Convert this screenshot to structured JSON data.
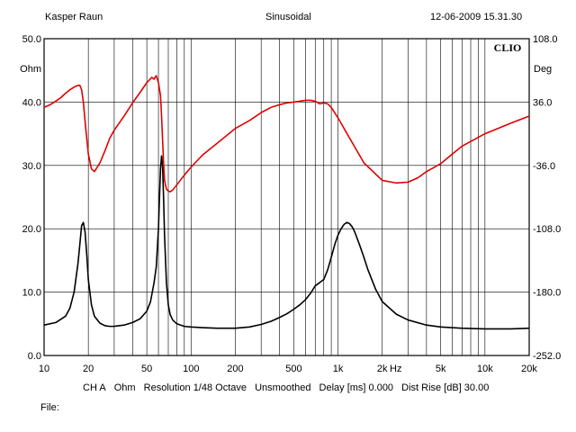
{
  "header": {
    "left": "Kasper Raun",
    "center": "Sinusoidal",
    "right": "12-06-2009 15.31.30"
  },
  "brand": "CLIO",
  "footer": {
    "channel": "CH A",
    "unit": "Ohm",
    "resolution": "Resolution 1/48 Octave",
    "smoothing": "Unsmoothed",
    "delay": "Delay [ms] 0.000",
    "dist_rise": "Dist Rise [dB] 30.00"
  },
  "file_label": "File:",
  "colors": {
    "impedance": "#000000",
    "phase": "#e00000",
    "grid": "#000000"
  },
  "chart_data": {
    "type": "line",
    "xscale": "log",
    "xlim": [
      10,
      20000
    ],
    "x_ticks": [
      10,
      20,
      50,
      100,
      200,
      500,
      1000,
      2000,
      5000,
      10000,
      20000
    ],
    "x_tick_labels": [
      "10",
      "20",
      "50",
      "100",
      "200",
      "500",
      "1k",
      "2k",
      "5k",
      "10k",
      "20k"
    ],
    "x_unit_label": "Hz",
    "y_left": {
      "unit": "Ohm",
      "lim": [
        0,
        50
      ],
      "ticks": [
        0,
        10,
        20,
        30,
        40,
        50
      ],
      "tick_labels": [
        "0.0",
        "10.0",
        "20.0",
        "30.0",
        "40.0",
        "50.0"
      ]
    },
    "y_right": {
      "unit": "Deg",
      "lim": [
        -252,
        108
      ],
      "ticks": [
        -252,
        -180,
        -108,
        -36,
        36,
        108
      ],
      "tick_labels": [
        "-252.0",
        "-180.0",
        "-108.0",
        "-36.0",
        "36.0",
        "108.0"
      ]
    },
    "grid": true,
    "series": [
      {
        "axis": "left",
        "color": "#000000",
        "x": [
          10,
          12,
          14,
          15,
          16,
          17,
          17.5,
          18,
          18.5,
          19,
          19.5,
          20,
          21,
          22,
          24,
          26,
          28,
          30,
          35,
          40,
          45,
          50,
          53,
          56,
          58,
          60,
          61,
          62,
          63,
          64,
          65,
          66,
          68,
          70,
          72,
          75,
          80,
          90,
          100,
          120,
          150,
          200,
          250,
          300,
          350,
          400,
          450,
          500,
          550,
          600,
          650,
          700,
          750,
          800,
          850,
          900,
          950,
          1000,
          1050,
          1100,
          1150,
          1200,
          1250,
          1300,
          1400,
          1500,
          1600,
          1800,
          2000,
          2500,
          3000,
          4000,
          5000,
          7000,
          10000,
          15000,
          20000
        ],
        "values": [
          4.8,
          5.2,
          6.2,
          7.5,
          10.0,
          14.5,
          17.5,
          20.5,
          21.0,
          19.5,
          16.0,
          12.0,
          8.0,
          6.2,
          5.1,
          4.7,
          4.6,
          4.6,
          4.8,
          5.2,
          5.8,
          7.0,
          8.5,
          11.5,
          14.0,
          20.0,
          25.0,
          29.5,
          31.5,
          30.0,
          25.0,
          19.0,
          11.5,
          8.0,
          6.5,
          5.6,
          5.0,
          4.6,
          4.5,
          4.4,
          4.3,
          4.3,
          4.5,
          4.9,
          5.4,
          6.0,
          6.6,
          7.3,
          8.0,
          8.8,
          9.8,
          11.0,
          11.5,
          12.0,
          13.5,
          15.5,
          17.5,
          19.0,
          20.0,
          20.7,
          21.0,
          20.8,
          20.3,
          19.5,
          17.5,
          15.5,
          13.5,
          10.5,
          8.5,
          6.5,
          5.6,
          4.8,
          4.5,
          4.3,
          4.2,
          4.2,
          4.3
        ]
      },
      {
        "axis": "right",
        "color": "#e00000",
        "x": [
          10,
          11,
          12,
          13,
          14,
          15,
          16,
          17,
          17.5,
          18,
          18.5,
          19,
          19.5,
          20,
          21,
          22,
          24,
          26,
          28,
          30,
          35,
          40,
          45,
          50,
          54,
          56,
          58,
          60,
          62,
          63,
          64,
          65,
          66,
          68,
          70,
          72,
          75,
          80,
          90,
          100,
          120,
          150,
          200,
          250,
          300,
          350,
          400,
          450,
          500,
          550,
          600,
          650,
          700,
          750,
          800,
          850,
          900,
          1000,
          1200,
          1500,
          2000,
          2500,
          3000,
          3500,
          4000,
          5000,
          6000,
          7000,
          10000,
          15000,
          20000
        ],
        "values": [
          30,
          33,
          37,
          41,
          46,
          50,
          53,
          55,
          55,
          50,
          36,
          14,
          -5,
          -23,
          -40,
          -43,
          -33,
          -19,
          -5,
          4,
          20,
          35,
          47,
          58,
          64,
          62,
          66,
          58,
          43,
          20,
          -6,
          -33,
          -53,
          -63,
          -65,
          -66,
          -64,
          -58,
          -47,
          -38,
          -24,
          -11,
          6,
          15,
          24,
          30,
          33,
          35,
          36,
          37,
          38,
          38,
          37,
          34,
          35,
          34,
          30,
          18,
          -5,
          -33,
          -53,
          -56,
          -55,
          -50,
          -43,
          -34,
          -23,
          -14,
          0,
          12,
          20
        ]
      }
    ]
  }
}
